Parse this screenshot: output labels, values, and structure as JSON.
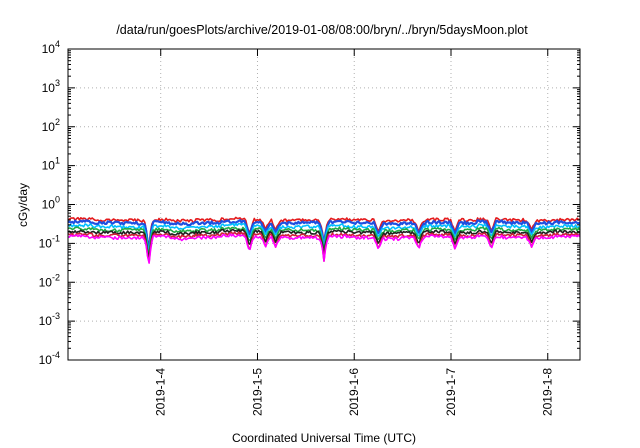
{
  "chart_data": {
    "type": "line",
    "title": "/data/run/goesPlots/archive/2019-01-08/08:00/bryn/../bryn/5daysMoon.plot",
    "xlabel": "Coordinated Universal Time (UTC)",
    "ylabel": "cGy/day",
    "yscale": "log",
    "ylim": [
      0.0001,
      10000
    ],
    "xlim": [
      "2019-01-03T01:00",
      "2019-01-08T08:00"
    ],
    "grid": true,
    "y_ticks": [
      {
        "base": "10",
        "exp": "-4"
      },
      {
        "base": "10",
        "exp": "-3"
      },
      {
        "base": "10",
        "exp": "-2"
      },
      {
        "base": "10",
        "exp": "-1"
      },
      {
        "base": "10",
        "exp": "0"
      },
      {
        "base": "10",
        "exp": "1"
      },
      {
        "base": "10",
        "exp": "2"
      },
      {
        "base": "10",
        "exp": "3"
      },
      {
        "base": "10",
        "exp": "4"
      }
    ],
    "x_ticks": [
      "2019-1-4",
      "2019-1-5",
      "2019-1-6",
      "2019-1-7",
      "2019-1-8"
    ],
    "series": [
      {
        "color": "#e41a1c",
        "baseline": 0.4,
        "values": [
          0.42,
          0.4,
          0.39,
          0.41,
          0.38,
          0.4,
          0.43,
          0.41,
          0.39,
          0.4,
          0.42,
          0.4,
          0.38,
          0.39,
          0.41,
          0.4,
          0.42,
          0.4,
          0.39,
          0.41
        ]
      },
      {
        "color": "#1f4fe0",
        "baseline": 0.35,
        "values": [
          0.36,
          0.34,
          0.33,
          0.35,
          0.32,
          0.34,
          0.37,
          0.35,
          0.33,
          0.34,
          0.36,
          0.34,
          0.32,
          0.33,
          0.35,
          0.34,
          0.36,
          0.34,
          0.33,
          0.35
        ]
      },
      {
        "color": "#00bfff",
        "baseline": 0.28,
        "values": [
          0.29,
          0.27,
          0.26,
          0.28,
          0.25,
          0.27,
          0.3,
          0.28,
          0.26,
          0.27,
          0.29,
          0.27,
          0.25,
          0.26,
          0.28,
          0.27,
          0.29,
          0.27,
          0.26,
          0.28
        ]
      },
      {
        "color": "#22aa44",
        "baseline": 0.23,
        "values": [
          0.24,
          0.22,
          0.22,
          0.23,
          0.21,
          0.22,
          0.24,
          0.23,
          0.22,
          0.22,
          0.24,
          0.22,
          0.21,
          0.22,
          0.23,
          0.22,
          0.24,
          0.22,
          0.22,
          0.23
        ]
      },
      {
        "color": "#202020",
        "baseline": 0.2,
        "values": [
          0.2,
          0.19,
          0.19,
          0.2,
          0.18,
          0.19,
          0.21,
          0.2,
          0.19,
          0.19,
          0.2,
          0.19,
          0.18,
          0.19,
          0.2,
          0.19,
          0.2,
          0.19,
          0.19,
          0.2
        ]
      },
      {
        "color": "#d0203a",
        "baseline": 0.17,
        "values": [
          0.17,
          0.16,
          0.16,
          0.17,
          0.15,
          0.16,
          0.18,
          0.17,
          0.16,
          0.16,
          0.17,
          0.16,
          0.15,
          0.16,
          0.17,
          0.16,
          0.17,
          0.16,
          0.16,
          0.17
        ]
      },
      {
        "color": "#ff00ff",
        "baseline": 0.15,
        "values": [
          0.15,
          0.14,
          0.14,
          0.15,
          0.13,
          0.14,
          0.16,
          0.15,
          0.14,
          0.14,
          0.15,
          0.14,
          0.13,
          0.14,
          0.15,
          0.14,
          0.15,
          0.14,
          0.14,
          0.15
        ]
      }
    ],
    "dips": [
      {
        "x": "2019-01-03T21:00",
        "min": 0.018
      },
      {
        "x": "2019-01-04T22:00",
        "min": 0.06
      },
      {
        "x": "2019-01-05T02:00",
        "min": 0.08
      },
      {
        "x": "2019-01-05T04:30",
        "min": 0.08
      },
      {
        "x": "2019-01-05T16:30",
        "min": 0.035
      },
      {
        "x": "2019-01-06T06:00",
        "min": 0.07
      },
      {
        "x": "2019-01-06T16:00",
        "min": 0.07
      },
      {
        "x": "2019-01-07T01:00",
        "min": 0.07
      },
      {
        "x": "2019-01-07T10:00",
        "min": 0.07
      },
      {
        "x": "2019-01-07T20:00",
        "min": 0.08
      }
    ]
  }
}
